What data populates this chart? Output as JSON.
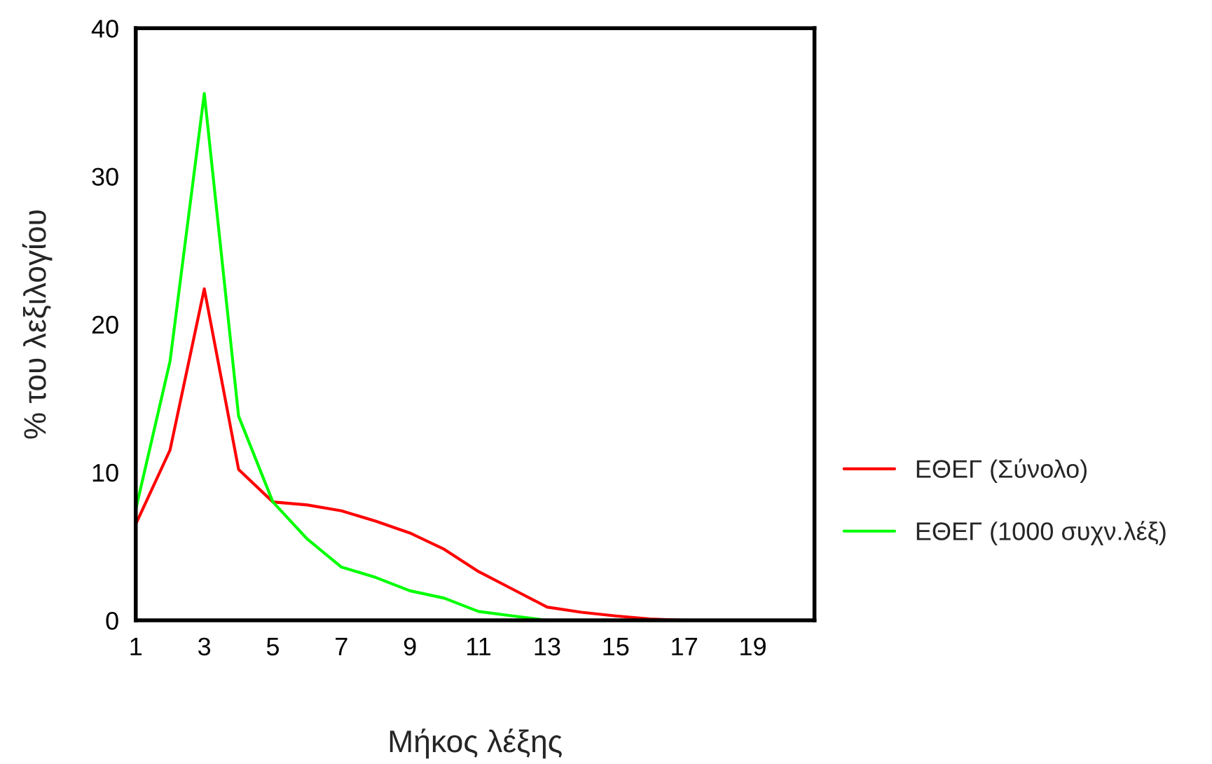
{
  "chart_data": {
    "type": "line",
    "xlabel": "Μήκος λέξης",
    "ylabel": "% του λεξιλογίου",
    "xlim": [
      1,
      20.8
    ],
    "xticks": [
      1,
      3,
      5,
      7,
      9,
      11,
      13,
      15,
      17,
      19
    ],
    "ylim": [
      0,
      40
    ],
    "yticks": [
      0,
      10,
      20,
      30,
      40
    ],
    "series": [
      {
        "name": "ΕΘΕΓ (Σύνολο)",
        "color": "#ff0000",
        "x": [
          1,
          2,
          3,
          4,
          5,
          6,
          7,
          8,
          9,
          10,
          11,
          12,
          13,
          14,
          15,
          16,
          17
        ],
        "values": [
          6.5,
          11.5,
          22.4,
          10.2,
          8.0,
          7.8,
          7.4,
          6.7,
          5.9,
          4.8,
          3.3,
          2.1,
          0.9,
          0.55,
          0.3,
          0.1,
          0
        ]
      },
      {
        "name": "ΕΘΕΓ (1000 συχν.λέξ)",
        "color": "#00ff00",
        "x": [
          1,
          2,
          3,
          4,
          5,
          6,
          7,
          8,
          9,
          10,
          11,
          12,
          13
        ],
        "values": [
          7.5,
          17.5,
          35.6,
          13.8,
          8.0,
          5.5,
          3.6,
          2.9,
          2.0,
          1.5,
          0.6,
          0.3,
          0
        ]
      }
    ],
    "legend": "right",
    "grid": false,
    "marker": "none",
    "line_style": "solid"
  }
}
